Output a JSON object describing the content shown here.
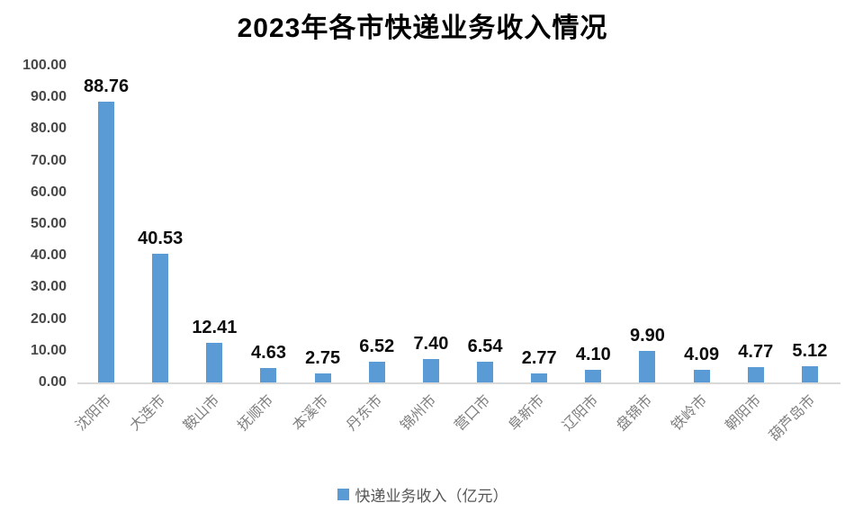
{
  "chart_data": {
    "type": "bar",
    "title": "2023年各市快递业务收入情况",
    "categories": [
      "沈阳市",
      "大连市",
      "鞍山市",
      "抚顺市",
      "本溪市",
      "丹东市",
      "锦州市",
      "营口市",
      "阜新市",
      "辽阳市",
      "盘锦市",
      "铁岭市",
      "朝阳市",
      "葫芦岛市"
    ],
    "values": [
      88.76,
      40.53,
      12.41,
      4.63,
      2.75,
      6.52,
      7.4,
      6.54,
      2.77,
      4.1,
      9.9,
      4.09,
      4.77,
      5.12
    ],
    "data_labels": [
      "88.76",
      "40.53",
      "12.41",
      "4.63",
      "2.75",
      "6.52",
      "7.40",
      "6.54",
      "2.77",
      "4.10",
      "9.90",
      "4.09",
      "4.77",
      "5.12"
    ],
    "xlabel": "",
    "ylabel": "",
    "ylim": [
      0,
      100
    ],
    "ytick_step": 10,
    "ytick_labels": [
      "0.00",
      "10.00",
      "20.00",
      "30.00",
      "40.00",
      "50.00",
      "60.00",
      "70.00",
      "80.00",
      "90.00",
      "100.00"
    ],
    "grid": false,
    "legend_position": "bottom",
    "legend_label": "快递业务收入（亿元）",
    "bar_color": "#5B9BD5",
    "axis_line_color": "#d9d9d9",
    "axis_text_color": "#484848",
    "category_text_color": "#7f7f7f",
    "title_color": "#000000"
  }
}
